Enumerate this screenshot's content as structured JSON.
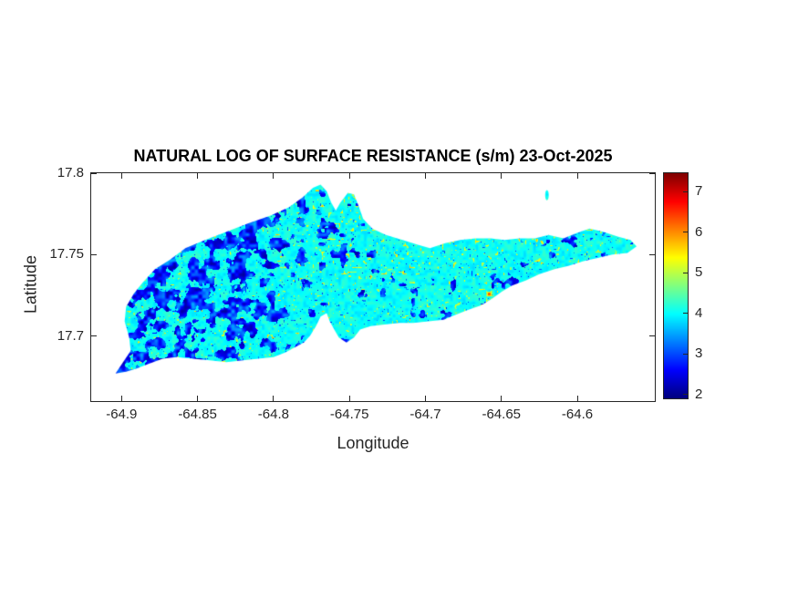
{
  "window": {
    "background": "#ffffff"
  },
  "chart_data": {
    "type": "heatmap",
    "title": "NATURAL LOG OF SURFACE RESISTANCE (s/m) 23-Oct-2025",
    "xlabel": "Longitude",
    "ylabel": "Latitude",
    "xlim": [
      -64.92,
      -64.549
    ],
    "ylim": [
      17.66,
      17.8
    ],
    "x_ticks": [
      -64.9,
      -64.85,
      -64.8,
      -64.75,
      -64.7,
      -64.65,
      -64.6
    ],
    "x_tick_labels": [
      "-64.9",
      "-64.85",
      "-64.8",
      "-64.75",
      "-64.7",
      "-64.65",
      "-64.6"
    ],
    "y_ticks": [
      17.8,
      17.75,
      17.7
    ],
    "y_tick_labels": [
      "17.8",
      "17.75",
      "17.7"
    ],
    "grid": false,
    "legend": "none",
    "colormap": "jet",
    "caxis": [
      1.9,
      7.45
    ],
    "colorbar": {
      "position": "right",
      "ticks": [
        2,
        3,
        4,
        5,
        6,
        7
      ],
      "tick_labels": [
        "2",
        "3",
        "4",
        "5",
        "6",
        "7"
      ]
    },
    "colors": {
      "background": "#ffffff",
      "axis_and_ticks": "#262626",
      "title_text": "#000000",
      "dominant_surface": "#0df2f2",
      "low_value_patches": "#0000cd",
      "high_value_speckles": "#c8e632"
    },
    "value_field": {
      "description": "Natural log of surface resistance over St. Croix: mostly ~4 (cyan) with dense dark-blue patches (2-3.5) across the western third, scattered blue patches and dots elsewhere, and yellow-green speckles (~4.7-5.9) concentrated near the north-central peninsula and over the eastern half; one small orange hotspot near the south-central coast.",
      "base_range": [
        3.78,
        4.28
      ],
      "low_patch_range": [
        2.05,
        3.55
      ],
      "speckle_range": [
        4.65,
        5.85
      ],
      "west_low_patch_coverage": 0.5,
      "east_low_patch_coverage": 0.04,
      "noise_seed": 7,
      "hotspots": [
        {
          "lon": -64.658,
          "lat": 17.726,
          "value": 6.3
        }
      ]
    },
    "islets": [
      {
        "name": "buck-island",
        "lon": -64.62,
        "lat": 17.7865,
        "w": 0.0024,
        "h": 0.0062
      }
    ],
    "island_outline": [
      [
        -64.904,
        17.677
      ],
      [
        -64.899,
        17.684
      ],
      [
        -64.894,
        17.691
      ],
      [
        -64.895,
        17.699
      ],
      [
        -64.898,
        17.709
      ],
      [
        -64.897,
        17.718
      ],
      [
        -64.892,
        17.726
      ],
      [
        -64.886,
        17.733
      ],
      [
        -64.878,
        17.741
      ],
      [
        -64.868,
        17.747
      ],
      [
        -64.858,
        17.754
      ],
      [
        -64.845,
        17.759
      ],
      [
        -64.831,
        17.764
      ],
      [
        -64.817,
        17.769
      ],
      [
        -64.802,
        17.774
      ],
      [
        -64.79,
        17.779
      ],
      [
        -64.781,
        17.785
      ],
      [
        -64.774,
        17.791
      ],
      [
        -64.769,
        17.793
      ],
      [
        -64.765,
        17.789
      ],
      [
        -64.762,
        17.782
      ],
      [
        -64.759,
        17.777
      ],
      [
        -64.756,
        17.782
      ],
      [
        -64.751,
        17.788
      ],
      [
        -64.747,
        17.787
      ],
      [
        -64.744,
        17.78
      ],
      [
        -64.741,
        17.772
      ],
      [
        -64.735,
        17.766
      ],
      [
        -64.726,
        17.762
      ],
      [
        -64.715,
        17.759
      ],
      [
        -64.705,
        17.756
      ],
      [
        -64.697,
        17.754
      ],
      [
        -64.687,
        17.757
      ],
      [
        -64.677,
        17.759
      ],
      [
        -64.667,
        17.76
      ],
      [
        -64.657,
        17.76
      ],
      [
        -64.648,
        17.759
      ],
      [
        -64.638,
        17.76
      ],
      [
        -64.628,
        17.76
      ],
      [
        -64.619,
        17.762
      ],
      [
        -64.609,
        17.76
      ],
      [
        -64.601,
        17.763
      ],
      [
        -64.592,
        17.766
      ],
      [
        -64.583,
        17.764
      ],
      [
        -64.573,
        17.761
      ],
      [
        -64.565,
        17.759
      ],
      [
        -64.561,
        17.755
      ],
      [
        -64.567,
        17.751
      ],
      [
        -64.577,
        17.75
      ],
      [
        -64.586,
        17.748
      ],
      [
        -64.596,
        17.746
      ],
      [
        -64.606,
        17.743
      ],
      [
        -64.615,
        17.741
      ],
      [
        -64.625,
        17.738
      ],
      [
        -64.634,
        17.734
      ],
      [
        -64.643,
        17.731
      ],
      [
        -64.65,
        17.727
      ],
      [
        -64.656,
        17.723
      ],
      [
        -64.663,
        17.719
      ],
      [
        -64.672,
        17.716
      ],
      [
        -64.68,
        17.713
      ],
      [
        -64.688,
        17.71
      ],
      [
        -64.698,
        17.709
      ],
      [
        -64.708,
        17.708
      ],
      [
        -64.717,
        17.708
      ],
      [
        -64.727,
        17.707
      ],
      [
        -64.736,
        17.706
      ],
      [
        -64.743,
        17.704
      ],
      [
        -64.747,
        17.699
      ],
      [
        -64.752,
        17.696
      ],
      [
        -64.757,
        17.699
      ],
      [
        -64.76,
        17.704
      ],
      [
        -64.763,
        17.709
      ],
      [
        -64.765,
        17.714
      ],
      [
        -64.769,
        17.712
      ],
      [
        -64.772,
        17.706
      ],
      [
        -64.776,
        17.7
      ],
      [
        -64.78,
        17.696
      ],
      [
        -64.784,
        17.694
      ],
      [
        -64.792,
        17.69
      ],
      [
        -64.8,
        17.687
      ],
      [
        -64.81,
        17.686
      ],
      [
        -64.82,
        17.685
      ],
      [
        -64.831,
        17.684
      ],
      [
        -64.842,
        17.685
      ],
      [
        -64.853,
        17.686
      ],
      [
        -64.864,
        17.687
      ],
      [
        -64.873,
        17.686
      ],
      [
        -64.882,
        17.683
      ],
      [
        -64.89,
        17.68
      ],
      [
        -64.897,
        17.678
      ]
    ]
  }
}
